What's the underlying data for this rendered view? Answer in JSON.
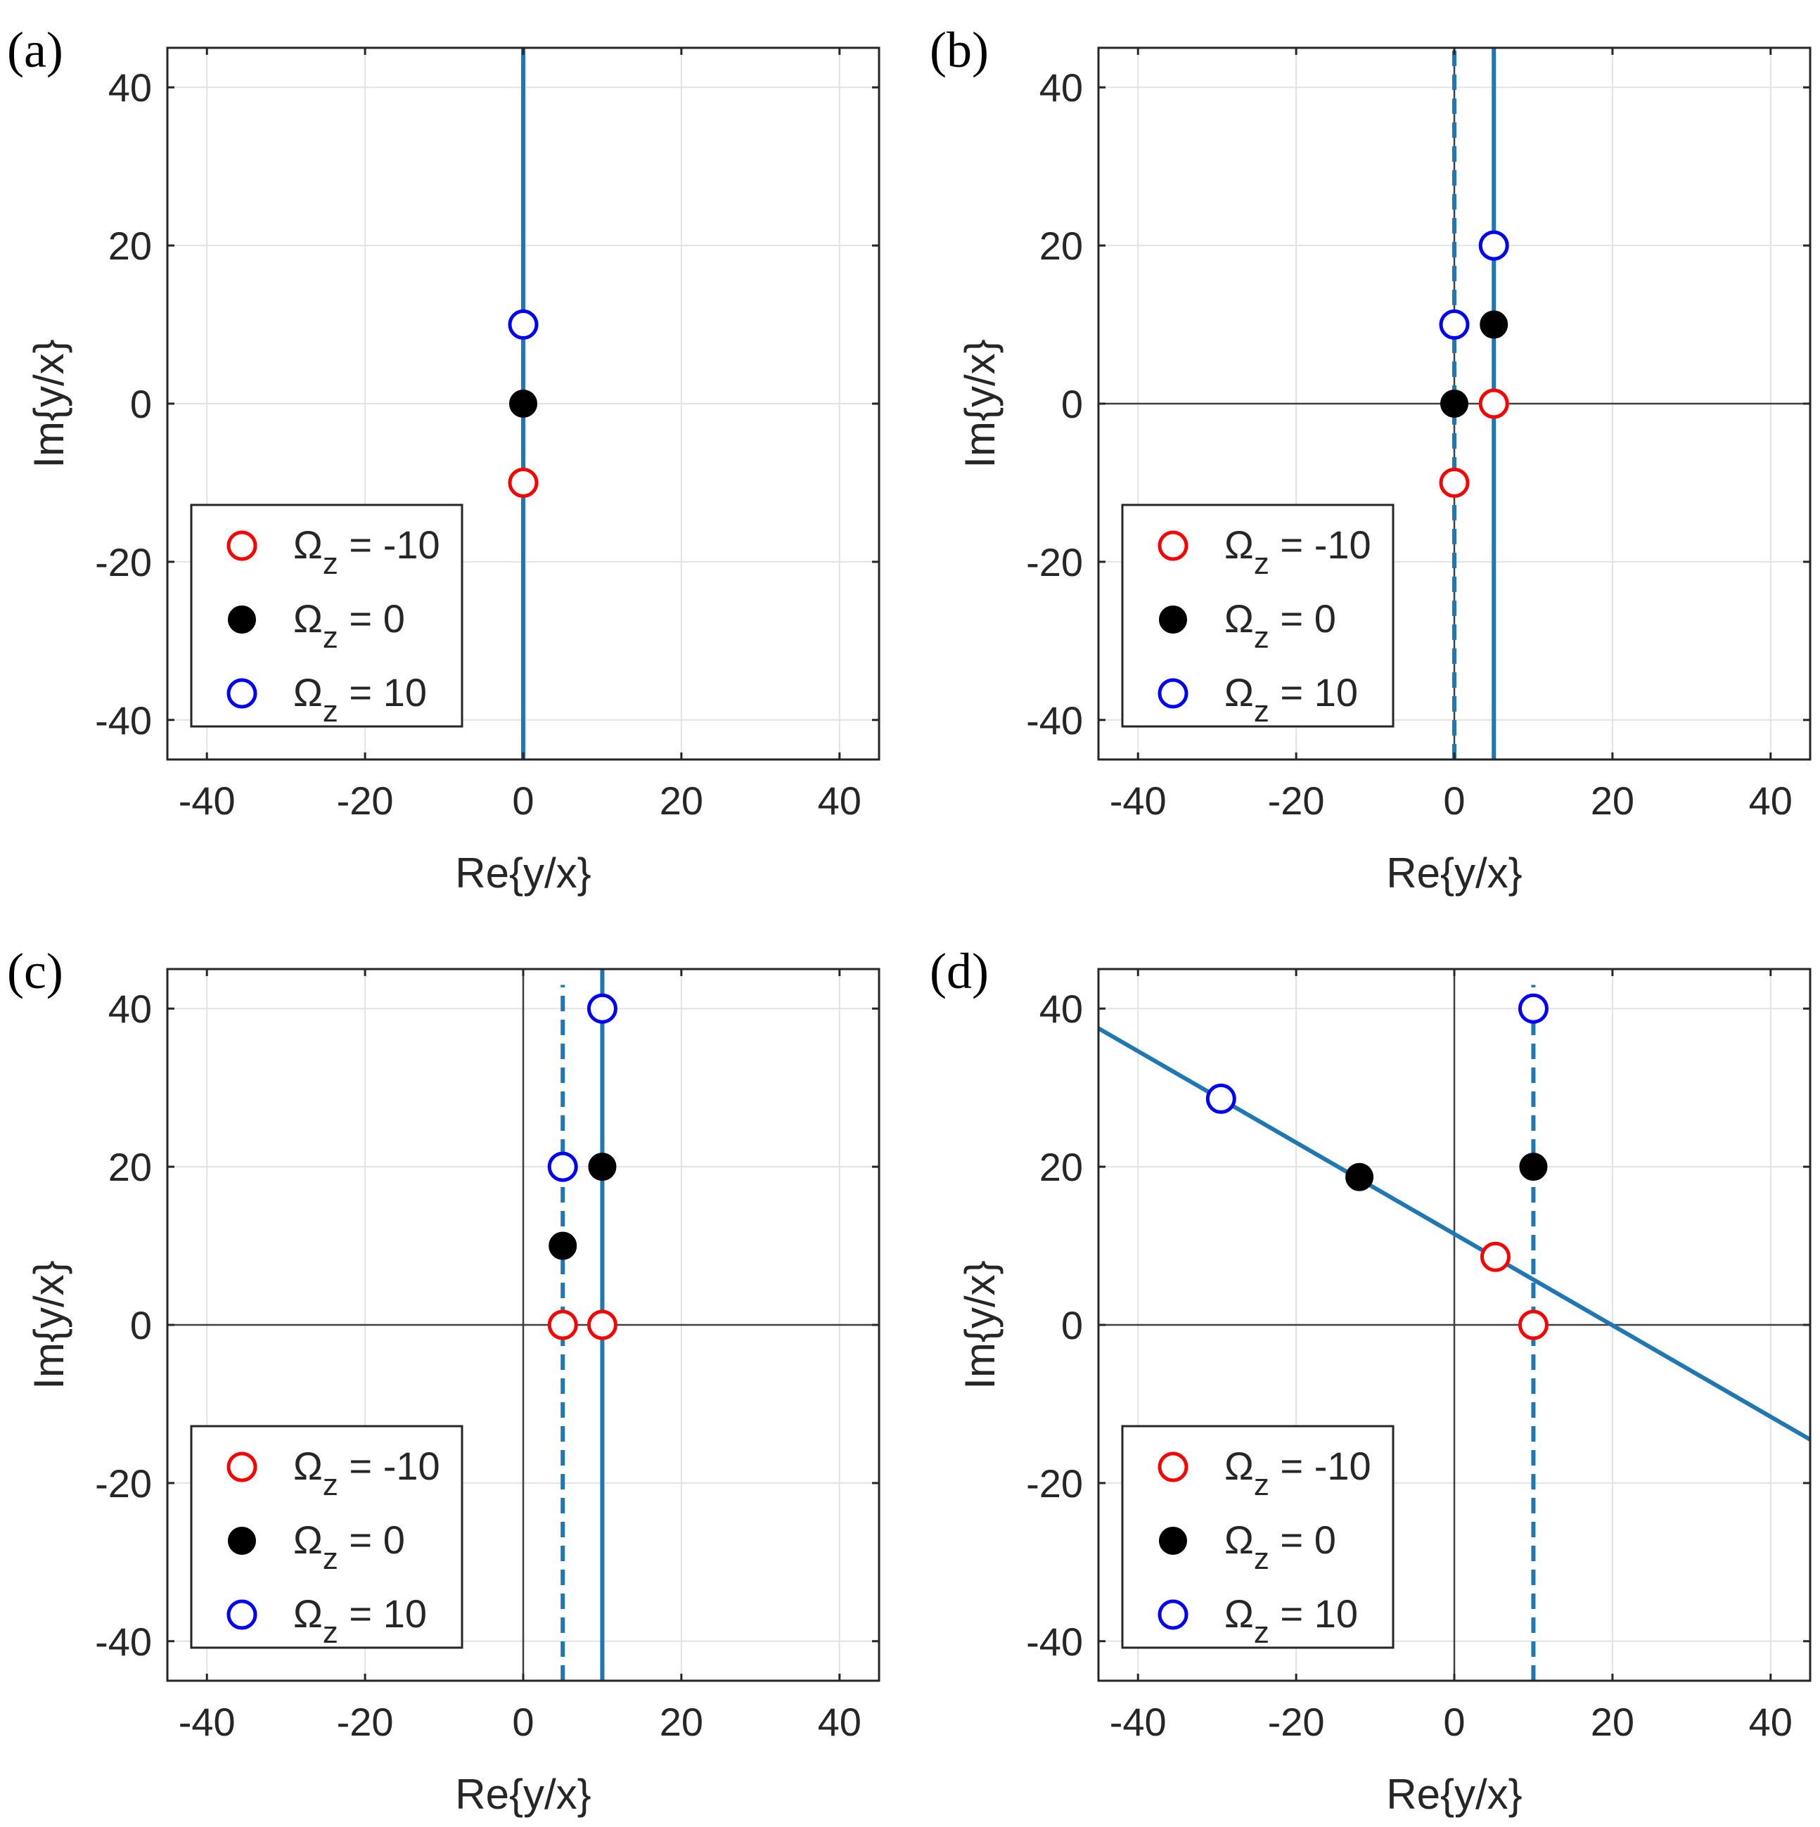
{
  "figure": {
    "background": "#ffffff",
    "colors": {
      "line": "#1f77b4",
      "red": "#ff0000",
      "black": "#000000",
      "blue": "#0000ff",
      "grid": "#e3e3e3",
      "axis_frame": "#262626",
      "zero_line": "#404040",
      "tick_text": "#262626"
    }
  },
  "legend_entries": [
    {
      "symbol": "Ω",
      "sub": "z",
      "rest": " = -10",
      "marker": "open",
      "color": "#ff0000"
    },
    {
      "symbol": "Ω",
      "sub": "z",
      "rest": " = 0",
      "marker": "filled",
      "color": "#000000"
    },
    {
      "symbol": "Ω",
      "sub": "z",
      "rest": " = 10",
      "marker": "open",
      "color": "#0000ff"
    }
  ],
  "chart_data": [
    {
      "panel": "(a)",
      "type": "scatter",
      "xlabel": "Re{y/x}",
      "ylabel": "Im{y/x}",
      "xlim": [
        -45,
        45
      ],
      "ylim": [
        -45,
        45
      ],
      "xticks": [
        -40,
        -20,
        0,
        20,
        40
      ],
      "yticks": [
        -40,
        -20,
        0,
        20,
        40
      ],
      "tick_labels": [
        "-40",
        "-20",
        "0",
        "20",
        "40"
      ],
      "grid": true,
      "zero_line": false,
      "legend": "bottom-left",
      "lines": [
        {
          "style": "solid",
          "points": [
            [
              0,
              -45
            ],
            [
              0,
              45
            ]
          ]
        }
      ],
      "series": [
        {
          "name": "Ωz = -10",
          "marker": "open",
          "color": "#ff0000",
          "points": [
            [
              0,
              -10
            ]
          ]
        },
        {
          "name": "Ωz = 0",
          "marker": "filled",
          "color": "#000000",
          "points": [
            [
              0,
              0
            ]
          ]
        },
        {
          "name": "Ωz = 10",
          "marker": "open",
          "color": "#0000ff",
          "points": [
            [
              0,
              10
            ]
          ]
        }
      ]
    },
    {
      "panel": "(b)",
      "type": "scatter",
      "xlabel": "Re{y/x}",
      "ylabel": "Im{y/x}",
      "xlim": [
        -45,
        45
      ],
      "ylim": [
        -45,
        45
      ],
      "xticks": [
        -40,
        -20,
        0,
        20,
        40
      ],
      "yticks": [
        -40,
        -20,
        0,
        20,
        40
      ],
      "tick_labels": [
        "-40",
        "-20",
        "0",
        "20",
        "40"
      ],
      "grid": true,
      "zero_line": true,
      "legend": "bottom-left",
      "lines": [
        {
          "style": "dashed",
          "points": [
            [
              0,
              -45
            ],
            [
              0,
              45
            ]
          ]
        },
        {
          "style": "solid",
          "points": [
            [
              5,
              -45
            ],
            [
              5,
              45
            ]
          ]
        }
      ],
      "series": [
        {
          "name": "Ωz = -10",
          "marker": "open",
          "color": "#ff0000",
          "points": [
            [
              0,
              -10
            ],
            [
              5,
              0
            ]
          ]
        },
        {
          "name": "Ωz = 0",
          "marker": "filled",
          "color": "#000000",
          "points": [
            [
              0,
              0
            ],
            [
              5,
              10
            ]
          ]
        },
        {
          "name": "Ωz = 10",
          "marker": "open",
          "color": "#0000ff",
          "points": [
            [
              0,
              10
            ],
            [
              5,
              20
            ]
          ]
        }
      ]
    },
    {
      "panel": "(c)",
      "type": "scatter",
      "xlabel": "Re{y/x}",
      "ylabel": "Im{y/x}",
      "xlim": [
        -45,
        45
      ],
      "ylim": [
        -45,
        45
      ],
      "xticks": [
        -40,
        -20,
        0,
        20,
        40
      ],
      "yticks": [
        -40,
        -20,
        0,
        20,
        40
      ],
      "tick_labels": [
        "-40",
        "-20",
        "0",
        "20",
        "40"
      ],
      "grid": true,
      "zero_line": true,
      "legend": "bottom-left",
      "lines": [
        {
          "style": "dashed",
          "points": [
            [
              5,
              -45
            ],
            [
              5,
              43
            ]
          ]
        },
        {
          "style": "solid",
          "points": [
            [
              10,
              -45
            ],
            [
              10,
              45
            ]
          ]
        }
      ],
      "series": [
        {
          "name": "Ωz = -10",
          "marker": "open",
          "color": "#ff0000",
          "points": [
            [
              5,
              0
            ],
            [
              10,
              0
            ]
          ]
        },
        {
          "name": "Ωz = 0",
          "marker": "filled",
          "color": "#000000",
          "points": [
            [
              5,
              10
            ],
            [
              10,
              20
            ]
          ]
        },
        {
          "name": "Ωz = 10",
          "marker": "open",
          "color": "#0000ff",
          "points": [
            [
              5,
              20
            ],
            [
              10,
              40
            ]
          ]
        }
      ]
    },
    {
      "panel": "(d)",
      "type": "scatter",
      "xlabel": "Re{y/x}",
      "ylabel": "Im{y/x}",
      "xlim": [
        -45,
        45
      ],
      "ylim": [
        -45,
        45
      ],
      "xticks": [
        -40,
        -20,
        0,
        20,
        40
      ],
      "yticks": [
        -40,
        -20,
        0,
        20,
        40
      ],
      "tick_labels": [
        "-40",
        "-20",
        "0",
        "20",
        "40"
      ],
      "grid": true,
      "zero_line": true,
      "legend": "bottom-left",
      "lines": [
        {
          "style": "dashed",
          "points": [
            [
              10,
              -45
            ],
            [
              10,
              43
            ]
          ]
        },
        {
          "style": "solid",
          "points": [
            [
              -45,
              37.5
            ],
            [
              45,
              -14.5
            ]
          ]
        }
      ],
      "series": [
        {
          "name": "Ωz = -10",
          "marker": "open",
          "color": "#ff0000",
          "points": [
            [
              5.2,
              8.6
            ],
            [
              10,
              0
            ]
          ]
        },
        {
          "name": "Ωz = 0",
          "marker": "filled",
          "color": "#000000",
          "points": [
            [
              -12,
              18.7
            ],
            [
              10,
              20
            ]
          ]
        },
        {
          "name": "Ωz = 10",
          "marker": "open",
          "color": "#0000ff",
          "points": [
            [
              -29.5,
              28.6
            ],
            [
              10,
              40
            ]
          ]
        }
      ]
    }
  ]
}
